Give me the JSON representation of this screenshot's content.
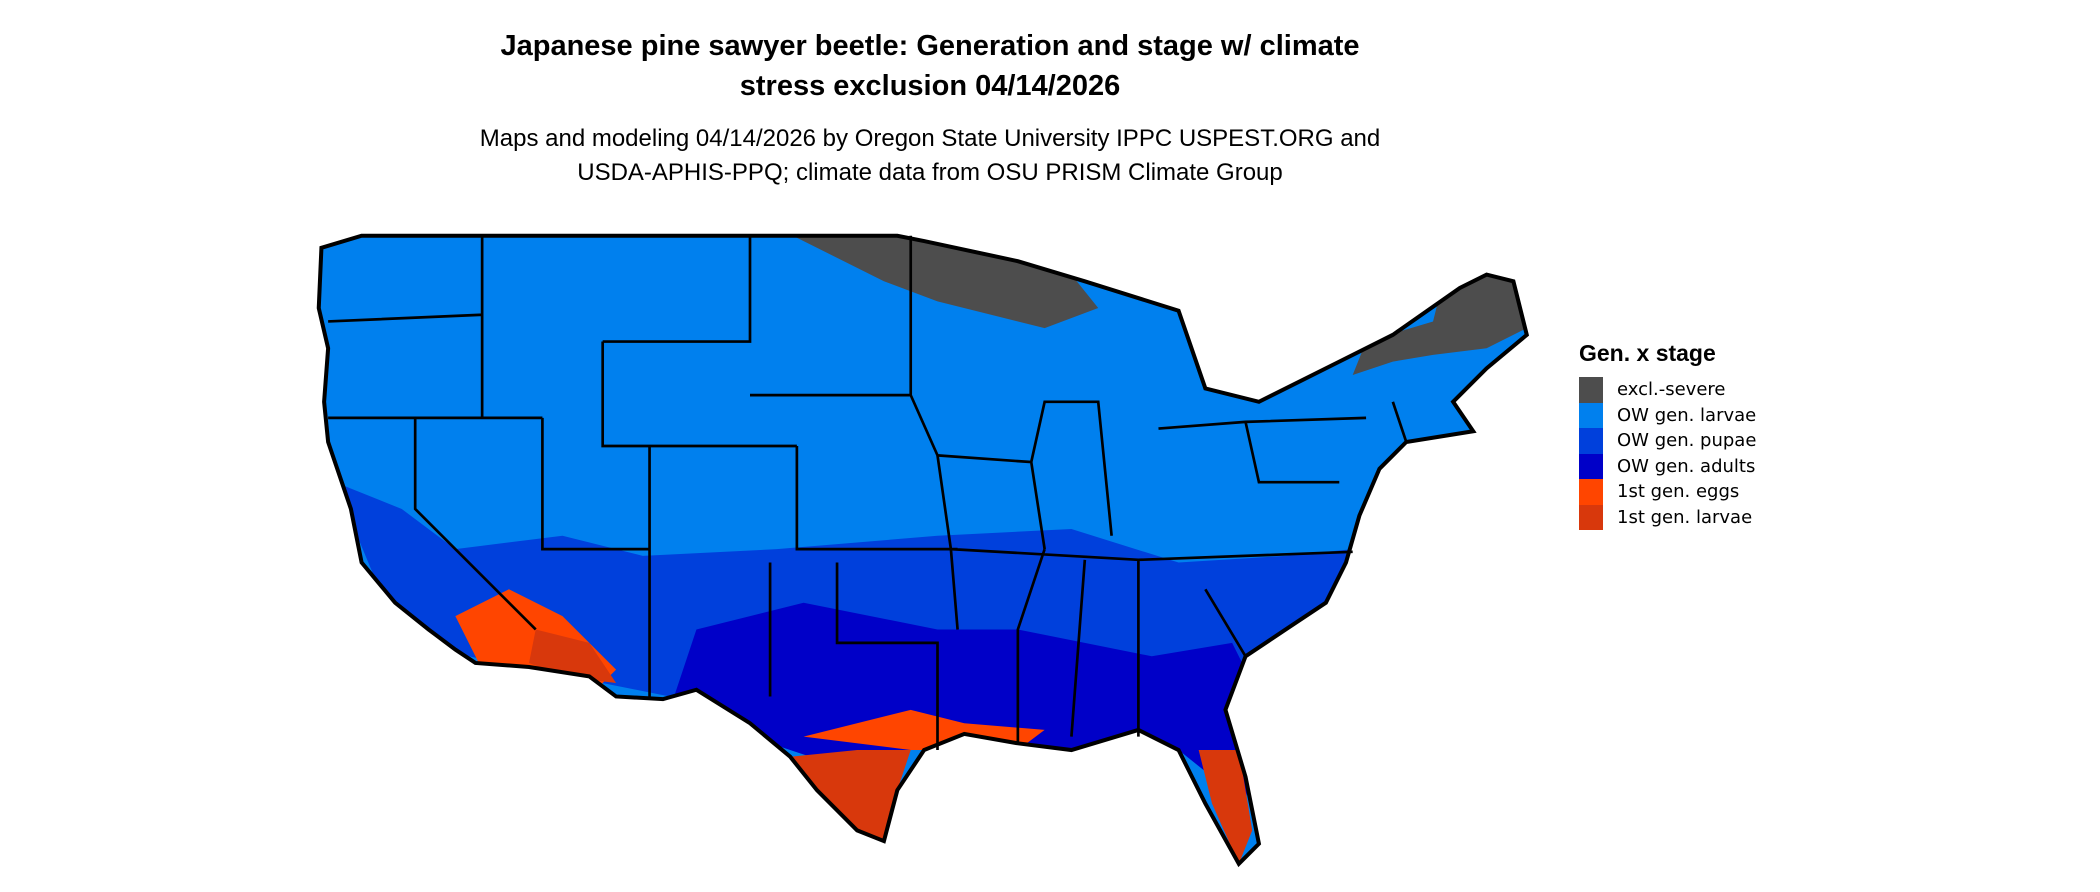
{
  "title_line1": "Japanese pine sawyer beetle: Generation and stage w/ climate",
  "title_line2": "stress exclusion 04/14/2026",
  "subtitle_line1": "Maps and modeling 04/14/2026 by Oregon State University IPPC USPEST.ORG and",
  "subtitle_line2": "USDA-APHIS-PPQ; climate data from OSU PRISM Climate Group",
  "legend": {
    "title": "Gen. x stage",
    "items": [
      {
        "label": "excl.-severe",
        "color": "#4d4d4d"
      },
      {
        "label": "OW gen. larvae",
        "color": "#0080ee"
      },
      {
        "label": "OW gen. pupae",
        "color": "#0040dc"
      },
      {
        "label": "OW gen. adults",
        "color": "#0000c8"
      },
      {
        "label": "1st gen. eggs",
        "color": "#ff4500"
      },
      {
        "label": "1st gen. larvae",
        "color": "#d8380c"
      }
    ]
  },
  "map": {
    "region": "Contiguous United States",
    "border_color": "#000000"
  }
}
